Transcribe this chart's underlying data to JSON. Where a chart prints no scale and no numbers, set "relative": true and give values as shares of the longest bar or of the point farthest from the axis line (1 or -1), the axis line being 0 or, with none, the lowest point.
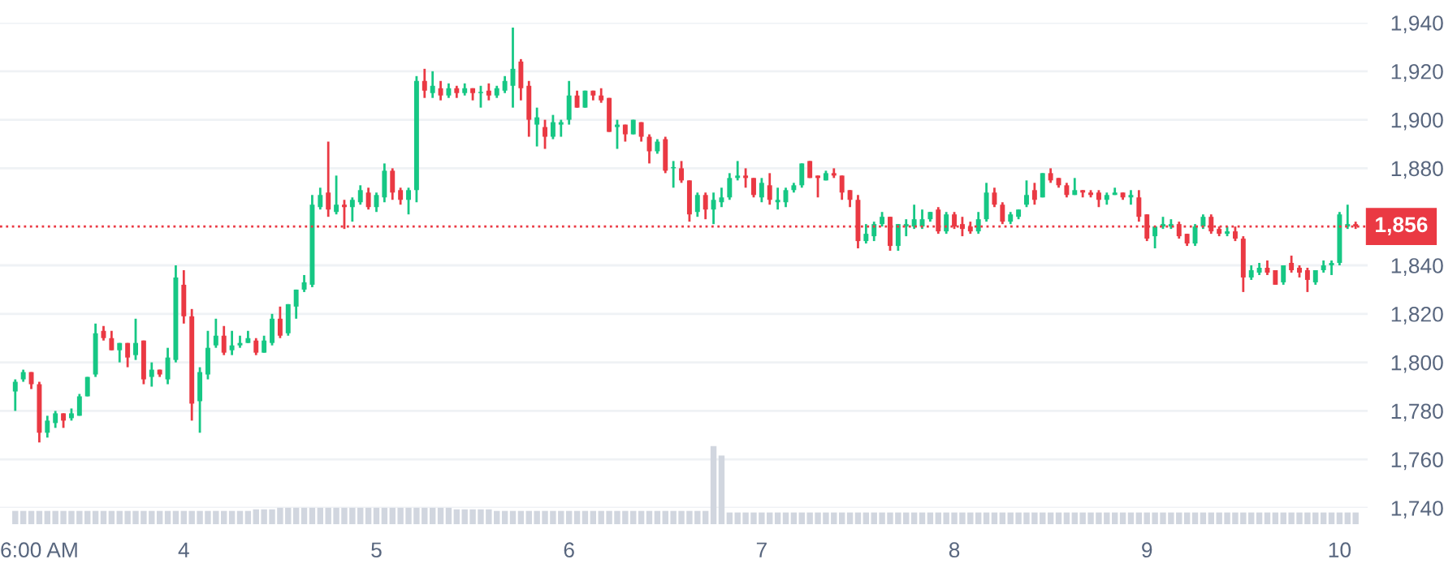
{
  "chart_data": [
    {
      "type": "candlestick",
      "categories": [
        null,
        null,
        null,
        "6:00 AM",
        null,
        null,
        null,
        null,
        null,
        null,
        null,
        null,
        null,
        null,
        null,
        null,
        null,
        null,
        null,
        null,
        null,
        "4",
        null,
        null,
        null,
        null,
        null,
        null,
        null,
        null,
        null,
        null,
        null,
        null,
        null,
        null,
        null,
        null,
        null,
        null,
        null,
        null,
        null,
        null,
        null,
        "5",
        null,
        null,
        null,
        null,
        null,
        null,
        null,
        null,
        null,
        null,
        null,
        null,
        null,
        null,
        null,
        null,
        null,
        null,
        null,
        null,
        null,
        null,
        null,
        "6",
        null,
        null,
        null,
        null,
        null,
        null,
        null,
        null,
        null,
        null,
        null,
        null,
        null,
        null,
        null,
        null,
        null,
        null,
        null,
        null,
        null,
        null,
        null,
        "7",
        null,
        null,
        null,
        null,
        null,
        null,
        null,
        null,
        null,
        null,
        null,
        null,
        null,
        null,
        null,
        null,
        null,
        null,
        null,
        null,
        null,
        null,
        null,
        "8",
        null,
        null,
        null,
        null,
        null,
        null,
        null,
        null,
        null,
        null,
        null,
        null,
        null,
        null,
        null,
        null,
        null,
        null,
        null,
        null,
        null,
        null,
        null,
        "9",
        null,
        null,
        null,
        null,
        null,
        null,
        null,
        null,
        null,
        null,
        null,
        null,
        null,
        null,
        null,
        null,
        null,
        null,
        null,
        null,
        null,
        null,
        null,
        "10",
        null,
        null
      ],
      "ohlc": [
        [
          1788,
          1793,
          1780,
          1792
        ],
        [
          1793,
          1797,
          1792,
          1796
        ],
        [
          1796,
          1796,
          1789,
          1791
        ],
        [
          1791,
          1792,
          1767,
          1771
        ],
        [
          1771,
          1778,
          1769,
          1776
        ],
        [
          1775,
          1780,
          1773,
          1779
        ],
        [
          1779,
          1779,
          1773,
          1776
        ],
        [
          1777,
          1781,
          1776,
          1779
        ],
        [
          1778,
          1787,
          1778,
          1786
        ],
        [
          1786,
          1794,
          1786,
          1794
        ],
        [
          1795,
          1816,
          1794,
          1812
        ],
        [
          1813,
          1815,
          1809,
          1810
        ],
        [
          1810,
          1813,
          1805,
          1805
        ],
        [
          1805,
          1808,
          1800,
          1808
        ],
        [
          1808,
          1808,
          1798,
          1802
        ],
        [
          1803,
          1818,
          1801,
          1808
        ],
        [
          1809,
          1809,
          1791,
          1793
        ],
        [
          1794,
          1800,
          1790,
          1797
        ],
        [
          1797,
          1797,
          1794,
          1795
        ],
        [
          1793,
          1806,
          1791,
          1802
        ],
        [
          1801,
          1840,
          1800,
          1835
        ],
        [
          1832,
          1838,
          1816,
          1819
        ],
        [
          1819,
          1822,
          1776,
          1783
        ],
        [
          1784,
          1798,
          1771,
          1796
        ],
        [
          1795,
          1813,
          1793,
          1806
        ],
        [
          1807,
          1818,
          1806,
          1811
        ],
        [
          1811,
          1815,
          1803,
          1804
        ],
        [
          1805,
          1813,
          1803,
          1807
        ],
        [
          1807,
          1811,
          1806,
          1808
        ],
        [
          1808,
          1813,
          1808,
          1810
        ],
        [
          1809,
          1810,
          1803,
          1804
        ],
        [
          1804,
          1811,
          1804,
          1809
        ],
        [
          1808,
          1820,
          1807,
          1818
        ],
        [
          1818,
          1823,
          1810,
          1811
        ],
        [
          1812,
          1824,
          1811,
          1824
        ],
        [
          1823,
          1830,
          1818,
          1830
        ],
        [
          1830,
          1836,
          1829,
          1833
        ],
        [
          1832,
          1869,
          1831,
          1865
        ],
        [
          1864,
          1872,
          1863,
          1869
        ],
        [
          1870,
          1891,
          1860,
          1863
        ],
        [
          1862,
          1877,
          1861,
          1865
        ],
        [
          1865,
          1867,
          1855,
          1864
        ],
        [
          1864,
          1868,
          1858,
          1867
        ],
        [
          1866,
          1873,
          1865,
          1871
        ],
        [
          1870,
          1872,
          1863,
          1864
        ],
        [
          1864,
          1870,
          1862,
          1869
        ],
        [
          1868,
          1882,
          1866,
          1879
        ],
        [
          1879,
          1880,
          1867,
          1870
        ],
        [
          1871,
          1872,
          1865,
          1867
        ],
        [
          1867,
          1872,
          1861,
          1871
        ],
        [
          1871,
          1918,
          1866,
          1916
        ],
        [
          1916,
          1921,
          1909,
          1912
        ],
        [
          1911,
          1920,
          1909,
          1914
        ],
        [
          1913,
          1916,
          1908,
          1910
        ],
        [
          1910,
          1915,
          1909,
          1913
        ],
        [
          1913,
          1914,
          1909,
          1911
        ],
        [
          1911,
          1915,
          1910,
          1913
        ],
        [
          1913,
          1913,
          1908,
          1911
        ],
        [
          1911,
          1914,
          1905,
          1911.5
        ],
        [
          1912,
          1915,
          1908,
          1910
        ],
        [
          1910,
          1914,
          1909,
          1913
        ],
        [
          1912,
          1918,
          1911,
          1916
        ],
        [
          1914,
          1938,
          1905,
          1921
        ],
        [
          1924,
          1925,
          1908,
          1913
        ],
        [
          1914,
          1916,
          1893,
          1900
        ],
        [
          1898,
          1905,
          1889,
          1901
        ],
        [
          1897,
          1900,
          1888,
          1893
        ],
        [
          1893,
          1902,
          1892,
          1899
        ],
        [
          1898,
          1900,
          1893,
          1899
        ],
        [
          1900,
          1916,
          1898,
          1910
        ],
        [
          1910,
          1912,
          1905,
          1905
        ],
        [
          1905,
          1912,
          1905,
          1912
        ],
        [
          1912,
          1912,
          1908,
          1910
        ],
        [
          1910,
          1913,
          1907,
          1908
        ],
        [
          1909,
          1909,
          1895,
          1895
        ],
        [
          1897,
          1900,
          1888,
          1898
        ],
        [
          1898,
          1898,
          1891,
          1894
        ],
        [
          1894,
          1900,
          1894,
          1900
        ],
        [
          1899,
          1899,
          1891,
          1893
        ],
        [
          1893,
          1894,
          1882,
          1887
        ],
        [
          1887,
          1892,
          1886,
          1891
        ],
        [
          1892,
          1893,
          1878,
          1879
        ],
        [
          1880,
          1883,
          1872,
          1880.5
        ],
        [
          1880,
          1883,
          1874,
          1875
        ],
        [
          1875,
          1875,
          1858,
          1861
        ],
        [
          1862,
          1870,
          1860,
          1869
        ],
        [
          1869,
          1870,
          1859,
          1863
        ],
        [
          1863,
          1870,
          1857,
          1867
        ],
        [
          1866,
          1872,
          1864,
          1868
        ],
        [
          1868,
          1878,
          1867,
          1876
        ],
        [
          1876,
          1883,
          1875,
          1877
        ],
        [
          1877,
          1880,
          1872,
          1876
        ],
        [
          1876,
          1876,
          1868,
          1869
        ],
        [
          1868,
          1876,
          1866,
          1874
        ],
        [
          1873,
          1878,
          1865,
          1867
        ],
        [
          1866,
          1872,
          1863,
          1867
        ],
        [
          1866,
          1872,
          1864,
          1871
        ],
        [
          1871,
          1874,
          1870,
          1873
        ],
        [
          1873,
          1882,
          1872,
          1882
        ],
        [
          1883,
          1883,
          1876,
          1876
        ],
        [
          1877,
          1877,
          1868,
          1876
        ],
        [
          1875,
          1879,
          1875,
          1878
        ],
        [
          1878,
          1880,
          1876,
          1877
        ],
        [
          1877,
          1877,
          1867,
          1870
        ],
        [
          1871,
          1871,
          1864,
          1867
        ],
        [
          1867,
          1869,
          1847,
          1850
        ],
        [
          1850,
          1857,
          1849,
          1853
        ],
        [
          1852,
          1858,
          1850,
          1857
        ],
        [
          1857,
          1862,
          1856,
          1860
        ],
        [
          1860,
          1860,
          1846,
          1848
        ],
        [
          1848,
          1857,
          1846,
          1857
        ],
        [
          1856,
          1859,
          1852,
          1857
        ],
        [
          1856,
          1865,
          1855,
          1859
        ],
        [
          1856,
          1863,
          1855,
          1859
        ],
        [
          1859,
          1862,
          1858,
          1862
        ],
        [
          1863,
          1864,
          1853,
          1854
        ],
        [
          1854,
          1862,
          1853,
          1861
        ],
        [
          1861,
          1862,
          1855,
          1856
        ],
        [
          1857,
          1860,
          1852,
          1855
        ],
        [
          1856,
          1858,
          1853,
          1854
        ],
        [
          1854,
          1862,
          1853,
          1859
        ],
        [
          1859,
          1874,
          1858,
          1870
        ],
        [
          1870,
          1872,
          1864,
          1865
        ],
        [
          1865,
          1866,
          1857,
          1858
        ],
        [
          1858,
          1862,
          1857,
          1861
        ],
        [
          1860,
          1863,
          1859,
          1863
        ],
        [
          1865,
          1875,
          1864,
          1869
        ],
        [
          1871,
          1874,
          1865,
          1867
        ],
        [
          1868,
          1878,
          1868,
          1878
        ],
        [
          1878,
          1880,
          1874,
          1875
        ],
        [
          1876,
          1876,
          1872,
          1873
        ],
        [
          1873,
          1874,
          1868,
          1869
        ],
        [
          1869,
          1876,
          1869,
          1871
        ],
        [
          1871,
          1871,
          1868,
          1870
        ],
        [
          1870,
          1871,
          1868,
          1869
        ],
        [
          1870,
          1871,
          1864,
          1867
        ],
        [
          1867,
          1870,
          1865,
          1869
        ],
        [
          1869,
          1872,
          1869,
          1870
        ],
        [
          1870,
          1870,
          1867,
          1868
        ],
        [
          1868,
          1871,
          1865,
          1869
        ],
        [
          1868,
          1871,
          1858,
          1860
        ],
        [
          1861,
          1861,
          1850,
          1851
        ],
        [
          1852,
          1856,
          1847,
          1856
        ],
        [
          1856,
          1860,
          1855,
          1857
        ],
        [
          1856,
          1859,
          1855,
          1857
        ],
        [
          1857,
          1858,
          1851,
          1852
        ],
        [
          1853,
          1853,
          1848,
          1849
        ],
        [
          1849,
          1857,
          1848,
          1856
        ],
        [
          1856,
          1861,
          1855,
          1860
        ],
        [
          1860,
          1861,
          1853,
          1854
        ],
        [
          1855,
          1856,
          1852,
          1853
        ],
        [
          1853,
          1856,
          1852,
          1854
        ],
        [
          1854,
          1856,
          1850,
          1851
        ],
        [
          1851,
          1852,
          1829,
          1835
        ],
        [
          1835,
          1840,
          1834,
          1838
        ],
        [
          1837,
          1841,
          1836,
          1839
        ],
        [
          1839,
          1842,
          1836,
          1837
        ],
        [
          1838,
          1838,
          1832,
          1832
        ],
        [
          1833,
          1840,
          1832,
          1840
        ],
        [
          1841,
          1844,
          1837,
          1838
        ],
        [
          1839,
          1840,
          1835,
          1837
        ],
        [
          1838,
          1839,
          1829,
          1834
        ],
        [
          1833,
          1838,
          1832,
          1838
        ],
        [
          1838,
          1842,
          1837,
          1840
        ],
        [
          1840,
          1842,
          1836,
          1841
        ],
        [
          1841,
          1862,
          1840,
          1861
        ],
        [
          1856,
          1865,
          1855,
          1857
        ],
        [
          1857,
          1858,
          1855,
          1856
        ]
      ],
      "colors": [
        "#16c784",
        "#16c784",
        "#ea3943",
        "#ea3943",
        "#16c784",
        "#16c784",
        "#ea3943",
        "#16c784",
        "#16c784",
        "#16c784",
        "#16c784",
        "#ea3943",
        "#ea3943",
        "#16c784",
        "#ea3943",
        "#16c784",
        "#ea3943",
        "#16c784",
        "#ea3943",
        "#16c784",
        "#16c784",
        "#ea3943",
        "#ea3943",
        "#16c784",
        "#16c784",
        "#16c784",
        "#ea3943",
        "#16c784",
        "#16c784",
        "#16c784",
        "#ea3943",
        "#16c784",
        "#16c784",
        "#ea3943",
        "#16c784",
        "#16c784",
        "#16c784",
        "#16c784",
        "#16c784",
        "#ea3943",
        "#16c784",
        "#ea3943",
        "#16c784",
        "#16c784",
        "#ea3943",
        "#16c784",
        "#16c784",
        "#ea3943",
        "#ea3943",
        "#16c784",
        "#16c784",
        "#ea3943",
        "#16c784",
        "#ea3943",
        "#16c784",
        "#ea3943",
        "#16c784",
        "#ea3943",
        "#16c784",
        "#ea3943",
        "#16c784",
        "#16c784",
        "#16c784",
        "#ea3943",
        "#ea3943",
        "#16c784",
        "#ea3943",
        "#16c784",
        "#16c784",
        "#16c784",
        "#ea3943",
        "#16c784",
        "#ea3943",
        "#ea3943",
        "#ea3943",
        "#16c784",
        "#ea3943",
        "#16c784",
        "#ea3943",
        "#ea3943",
        "#16c784",
        "#ea3943",
        "#16c784",
        "#ea3943",
        "#ea3943",
        "#16c784",
        "#ea3943",
        "#16c784",
        "#16c784",
        "#16c784",
        "#16c784",
        "#ea3943",
        "#ea3943",
        "#16c784",
        "#ea3943",
        "#16c784",
        "#16c784",
        "#16c784",
        "#16c784",
        "#ea3943",
        "#ea3943",
        "#16c784",
        "#ea3943",
        "#ea3943",
        "#ea3943",
        "#ea3943",
        "#16c784",
        "#16c784",
        "#16c784",
        "#ea3943",
        "#16c784",
        "#16c784",
        "#16c784",
        "#16c784",
        "#16c784",
        "#ea3943",
        "#16c784",
        "#ea3943",
        "#ea3943",
        "#ea3943",
        "#16c784",
        "#16c784",
        "#ea3943",
        "#ea3943",
        "#16c784",
        "#16c784",
        "#16c784",
        "#ea3943",
        "#16c784",
        "#ea3943",
        "#ea3943",
        "#ea3943",
        "#16c784",
        "#ea3943",
        "#ea3943",
        "#ea3943",
        "#16c784",
        "#16c784",
        "#ea3943",
        "#16c784",
        "#ea3943",
        "#ea3943",
        "#16c784",
        "#16c784",
        "#16c784",
        "#ea3943",
        "#ea3943",
        "#16c784",
        "#16c784",
        "#ea3943",
        "#ea3943",
        "#16c784",
        "#ea3943",
        "#ea3943",
        "#16c784",
        "#16c784",
        "#ea3943",
        "#ea3943",
        "#16c784",
        "#ea3943",
        "#ea3943",
        "#ea3943",
        "#16c784",
        "#16c784",
        "#16c784",
        "#16c784",
        "#16c784",
        "#ea3943"
      ],
      "ylim": [
        1740,
        1940
      ],
      "yticks": [
        {
          "value": 1740,
          "label": "1,740"
        },
        {
          "value": 1760,
          "label": "1,760"
        },
        {
          "value": 1780,
          "label": "1,780"
        },
        {
          "value": 1800,
          "label": "1,800"
        },
        {
          "value": 1820,
          "label": "1,820"
        },
        {
          "value": 1840,
          "label": "1,840"
        },
        {
          "value": 1880,
          "label": "1,880"
        },
        {
          "value": 1900,
          "label": "1,900"
        },
        {
          "value": 1920,
          "label": "1,920"
        },
        {
          "value": 1940,
          "label": "1,940"
        }
      ],
      "grid": "y",
      "ref_lines": [
        {
          "axis": "y",
          "value": 1856,
          "label": "1,856",
          "color": "#ea3943",
          "line_style": "dotted"
        }
      ]
    },
    {
      "type": "bar",
      "relative": true,
      "color": "#d1d6df",
      "categories": [
        null,
        null,
        null,
        null,
        null,
        null,
        null,
        null,
        null,
        null,
        null,
        null,
        null,
        null,
        null,
        null,
        null,
        null,
        null,
        null,
        null,
        null,
        null,
        null,
        null,
        null,
        null,
        null,
        null,
        null,
        null,
        null,
        null,
        null,
        null,
        null,
        null,
        null,
        null,
        null,
        null,
        null,
        null,
        null,
        null,
        null,
        null,
        null,
        null,
        null,
        null,
        null,
        null,
        null,
        null,
        null,
        null,
        null,
        null,
        null,
        null,
        null,
        null,
        null,
        null,
        null,
        null,
        null,
        null,
        null,
        null,
        null,
        null,
        null,
        null,
        null,
        null,
        null,
        null,
        null,
        null,
        null,
        null,
        null,
        null,
        null,
        null,
        null,
        null,
        null,
        null,
        null,
        null,
        null,
        null,
        null,
        null,
        null,
        null,
        null,
        null,
        null,
        null,
        null,
        null,
        null,
        null,
        null,
        null,
        null,
        null,
        null,
        null,
        null,
        null,
        null,
        null,
        null,
        null,
        null,
        null,
        null,
        null,
        null,
        null,
        null,
        null,
        null,
        null,
        null,
        null,
        null,
        null,
        null,
        null,
        null,
        null,
        null,
        null,
        null,
        null,
        null,
        null,
        null,
        null,
        null,
        null,
        null,
        null,
        null,
        null,
        null,
        null,
        null,
        null,
        null,
        null,
        null,
        null,
        null,
        null,
        null,
        null,
        null,
        null,
        null,
        null,
        null
      ],
      "values": [
        0.17,
        0.17,
        0.17,
        0.17,
        0.17,
        0.17,
        0.17,
        0.17,
        0.17,
        0.17,
        0.17,
        0.17,
        0.17,
        0.17,
        0.17,
        0.17,
        0.17,
        0.17,
        0.17,
        0.17,
        0.17,
        0.17,
        0.17,
        0.17,
        0.17,
        0.17,
        0.17,
        0.17,
        0.17,
        0.17,
        0.19,
        0.19,
        0.19,
        0.21,
        0.21,
        0.21,
        0.21,
        0.21,
        0.21,
        0.21,
        0.21,
        0.21,
        0.21,
        0.21,
        0.21,
        0.21,
        0.21,
        0.21,
        0.21,
        0.21,
        0.21,
        0.21,
        0.21,
        0.21,
        0.21,
        0.19,
        0.19,
        0.19,
        0.19,
        0.19,
        0.17,
        0.17,
        0.17,
        0.17,
        0.17,
        0.17,
        0.17,
        0.17,
        0.17,
        0.17,
        0.17,
        0.17,
        0.17,
        0.17,
        0.17,
        0.17,
        0.17,
        0.17,
        0.17,
        0.17,
        0.17,
        0.17,
        0.17,
        0.17,
        0.17,
        0.17,
        0.17,
        1.0,
        0.88,
        0.15,
        0.15,
        0.15,
        0.15,
        0.15,
        0.15,
        0.15,
        0.15,
        0.15,
        0.15,
        0.15,
        0.15,
        0.15,
        0.15,
        0.15,
        0.15,
        0.15,
        0.15,
        0.15,
        0.15,
        0.15,
        0.15,
        0.15,
        0.15,
        0.15,
        0.15,
        0.15,
        0.15,
        0.15,
        0.15,
        0.15,
        0.15,
        0.15,
        0.15,
        0.15,
        0.15,
        0.15,
        0.15,
        0.15,
        0.15,
        0.15,
        0.15,
        0.15,
        0.15,
        0.15,
        0.15,
        0.15,
        0.15,
        0.15,
        0.15,
        0.15,
        0.15,
        0.15,
        0.15,
        0.15,
        0.15,
        0.15,
        0.15,
        0.15,
        0.15,
        0.15,
        0.15,
        0.15,
        0.15,
        0.15,
        0.15,
        0.15,
        0.15,
        0.15,
        0.15,
        0.15,
        0.15,
        0.15,
        0.15,
        0.15,
        0.15,
        0.15,
        0.15,
        0.15
      ]
    }
  ]
}
